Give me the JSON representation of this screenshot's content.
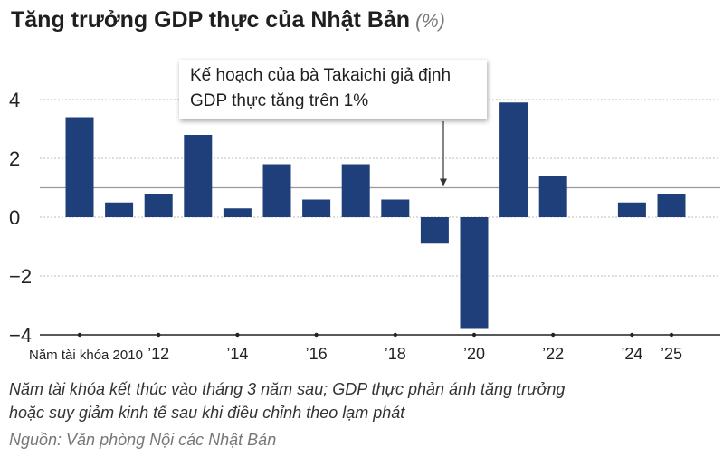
{
  "title": "Tăng trưởng GDP thực của Nhật Bản",
  "unit": "(%)",
  "annotation": {
    "line1": "Kế hoạch của bà Takaichi giả định",
    "line2": "GDP thực tăng trên 1%",
    "reference_value": 1
  },
  "note_line1": "Năm tài khóa kết thúc vào tháng 3 năm sau; GDP thực phản ánh tăng trưởng",
  "note_line2": "hoặc suy giảm kinh tế sau khi điều chỉnh theo lạm phát",
  "source": "Nguồn: Văn phòng Nội các Nhật Bản",
  "colors": {
    "bar": "#1f3f7a",
    "grid": "#bcbcbc",
    "reference": "#9a9a9a",
    "axis": "#222222"
  },
  "chart_data": {
    "type": "bar",
    "x": [
      2010,
      2011,
      2012,
      2013,
      2014,
      2015,
      2016,
      2017,
      2018,
      2019,
      2020,
      2021,
      2022,
      2023,
      2024,
      2025
    ],
    "values": [
      3.4,
      0.5,
      0.8,
      2.8,
      0.3,
      1.8,
      0.6,
      1.8,
      0.6,
      -0.9,
      -3.8,
      3.9,
      1.4,
      null,
      0.5,
      0.8
    ],
    "x_tick_labels": [
      {
        "x": 2010,
        "label": "Năm tài khóa 2010"
      },
      {
        "x": 2012,
        "label": "’12"
      },
      {
        "x": 2014,
        "label": "’14"
      },
      {
        "x": 2016,
        "label": "’16"
      },
      {
        "x": 2018,
        "label": "’18"
      },
      {
        "x": 2020,
        "label": "’20"
      },
      {
        "x": 2022,
        "label": "’22"
      },
      {
        "x": 2024,
        "label": "’24"
      },
      {
        "x": 2025,
        "label": "’25"
      }
    ],
    "y_ticks": [
      4,
      2,
      0,
      -2,
      -4
    ],
    "y_tick_labels": [
      "4",
      "2",
      "0",
      "−2",
      "−4"
    ],
    "ylim": [
      -4,
      4
    ],
    "grid": true
  }
}
